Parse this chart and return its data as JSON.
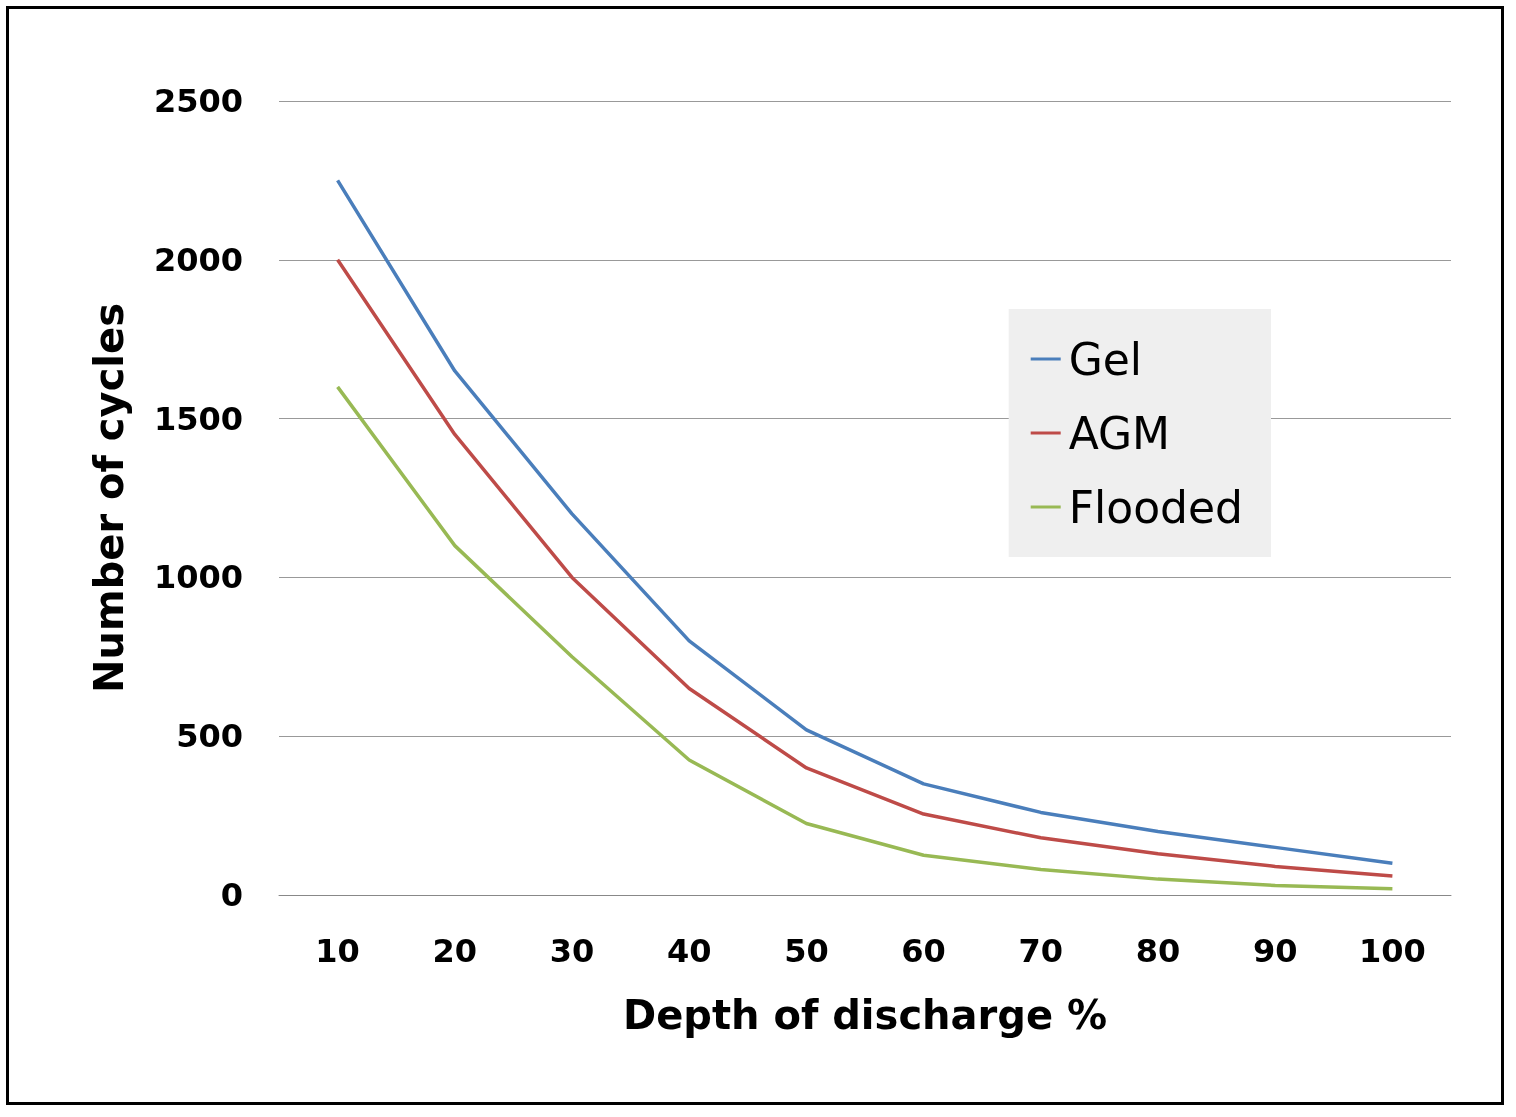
{
  "chart_data": {
    "type": "line",
    "xlabel": "Depth of discharge %",
    "ylabel": "Number of cycles",
    "categories": [
      "10",
      "20",
      "30",
      "40",
      "50",
      "60",
      "70",
      "80",
      "90",
      "100"
    ],
    "series": [
      {
        "name": "Gel",
        "color": "#4a7ebb",
        "values": [
          2250,
          1650,
          1200,
          800,
          520,
          350,
          260,
          200,
          150,
          100
        ]
      },
      {
        "name": "AGM",
        "color": "#be4b48",
        "values": [
          2000,
          1450,
          1000,
          650,
          400,
          255,
          180,
          130,
          90,
          60
        ]
      },
      {
        "name": "Flooded",
        "color": "#98b954",
        "values": [
          1600,
          1100,
          750,
          425,
          225,
          125,
          80,
          50,
          30,
          20
        ]
      }
    ],
    "ylim": [
      0,
      2500
    ],
    "yticks": [
      0,
      500,
      1000,
      1500,
      2000,
      2500
    ],
    "grid": "y",
    "legend": "right",
    "marker": "none",
    "line_style": "solid"
  }
}
